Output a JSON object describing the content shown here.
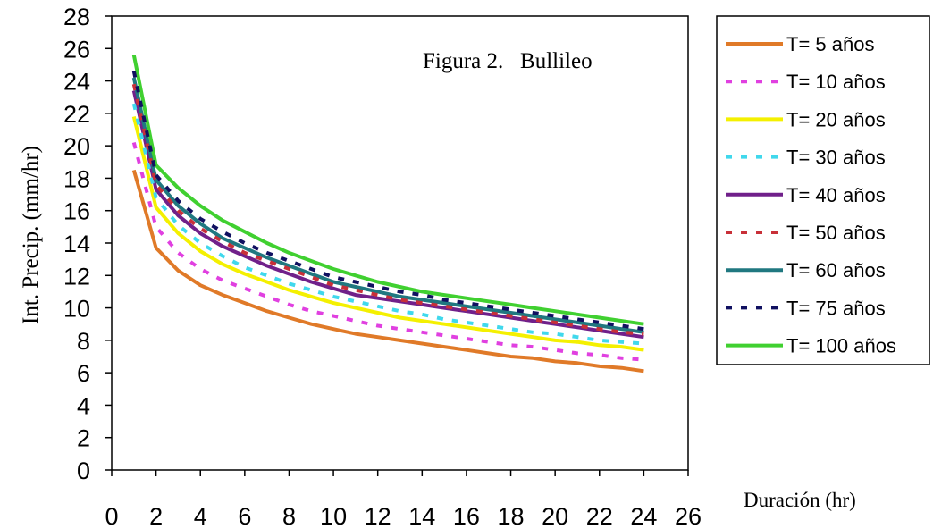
{
  "chart_data": {
    "type": "line",
    "title": "Figura 2.   Bullileo",
    "xlabel": "Duración (hr)",
    "ylabel": "Int. Precip. (mm/hr)",
    "xlim": [
      0,
      26
    ],
    "ylim": [
      0,
      28
    ],
    "x_ticks": [
      "0",
      "2",
      "4",
      "6",
      "8",
      "10",
      "12",
      "14",
      "16",
      "18",
      "20",
      "22",
      "24",
      "26"
    ],
    "y_ticks": [
      "0",
      "2",
      "4",
      "6",
      "8",
      "10",
      "12",
      "14",
      "16",
      "18",
      "20",
      "22",
      "24",
      "26",
      "28"
    ],
    "grid": false,
    "legend_position": "right",
    "x": [
      1,
      2,
      3,
      4,
      5,
      6,
      7,
      8,
      9,
      10,
      11,
      12,
      13,
      14,
      15,
      16,
      17,
      18,
      19,
      20,
      21,
      22,
      23,
      24
    ],
    "series": [
      {
        "name": "T= 5 años",
        "color": "#e07a28",
        "style": "solid",
        "values": [
          18.5,
          13.7,
          12.3,
          11.4,
          10.8,
          10.3,
          9.8,
          9.4,
          9.0,
          8.7,
          8.4,
          8.2,
          8.0,
          7.8,
          7.6,
          7.4,
          7.2,
          7.0,
          6.9,
          6.7,
          6.6,
          6.4,
          6.3,
          6.1
        ]
      },
      {
        "name": "T= 10 años",
        "color": "#e040e0",
        "style": "dotted",
        "values": [
          20.2,
          15.0,
          13.4,
          12.4,
          11.7,
          11.2,
          10.7,
          10.2,
          9.8,
          9.5,
          9.2,
          8.9,
          8.7,
          8.5,
          8.3,
          8.1,
          7.9,
          7.7,
          7.6,
          7.4,
          7.2,
          7.1,
          6.9,
          6.8
        ]
      },
      {
        "name": "T= 20 años",
        "color": "#f4f000",
        "style": "solid",
        "values": [
          21.8,
          16.2,
          14.6,
          13.5,
          12.7,
          12.1,
          11.6,
          11.1,
          10.7,
          10.3,
          10.0,
          9.7,
          9.4,
          9.2,
          9.0,
          8.8,
          8.6,
          8.4,
          8.2,
          8.0,
          7.9,
          7.7,
          7.6,
          7.4
        ]
      },
      {
        "name": "T= 30 años",
        "color": "#40d8ec",
        "style": "dotted",
        "values": [
          22.6,
          16.8,
          15.1,
          14.0,
          13.2,
          12.5,
          12.0,
          11.5,
          11.1,
          10.7,
          10.4,
          10.1,
          9.8,
          9.6,
          9.3,
          9.1,
          8.9,
          8.7,
          8.5,
          8.4,
          8.2,
          8.0,
          7.9,
          7.8
        ]
      },
      {
        "name": "T= 40 años",
        "color": "#70208a",
        "style": "solid",
        "values": [
          23.4,
          17.3,
          15.7,
          14.6,
          13.8,
          13.2,
          12.6,
          12.1,
          11.6,
          11.2,
          10.8,
          10.6,
          10.4,
          10.2,
          10.0,
          9.8,
          9.6,
          9.4,
          9.2,
          9.0,
          8.8,
          8.6,
          8.4,
          8.2
        ]
      },
      {
        "name": "T= 50 años",
        "color": "#c83038",
        "style": "dotted",
        "values": [
          23.8,
          17.6,
          16.0,
          14.9,
          14.1,
          13.4,
          12.9,
          12.4,
          11.9,
          11.4,
          11.1,
          10.8,
          10.5,
          10.3,
          10.1,
          9.9,
          9.7,
          9.5,
          9.3,
          9.1,
          8.9,
          8.7,
          8.5,
          8.4
        ]
      },
      {
        "name": "T= 60 años",
        "color": "#207880",
        "style": "solid",
        "values": [
          24.2,
          17.9,
          16.3,
          15.2,
          14.3,
          13.7,
          13.1,
          12.6,
          12.1,
          11.6,
          11.3,
          11.0,
          10.7,
          10.5,
          10.3,
          10.1,
          9.9,
          9.7,
          9.5,
          9.3,
          9.1,
          8.9,
          8.7,
          8.5
        ]
      },
      {
        "name": "T= 75 años",
        "color": "#101060",
        "style": "dotted",
        "values": [
          24.6,
          18.2,
          16.6,
          15.5,
          14.7,
          14.0,
          13.4,
          12.9,
          12.4,
          11.9,
          11.6,
          11.3,
          11.0,
          10.8,
          10.5,
          10.3,
          10.1,
          9.9,
          9.7,
          9.5,
          9.3,
          9.1,
          8.9,
          8.7
        ]
      },
      {
        "name": "T= 100 años",
        "color": "#40d030",
        "style": "solid",
        "values": [
          25.6,
          18.8,
          17.4,
          16.3,
          15.4,
          14.7,
          14.0,
          13.4,
          12.9,
          12.4,
          12.0,
          11.6,
          11.3,
          11.0,
          10.8,
          10.6,
          10.4,
          10.2,
          10.0,
          9.8,
          9.6,
          9.4,
          9.2,
          9.0
        ]
      }
    ]
  }
}
